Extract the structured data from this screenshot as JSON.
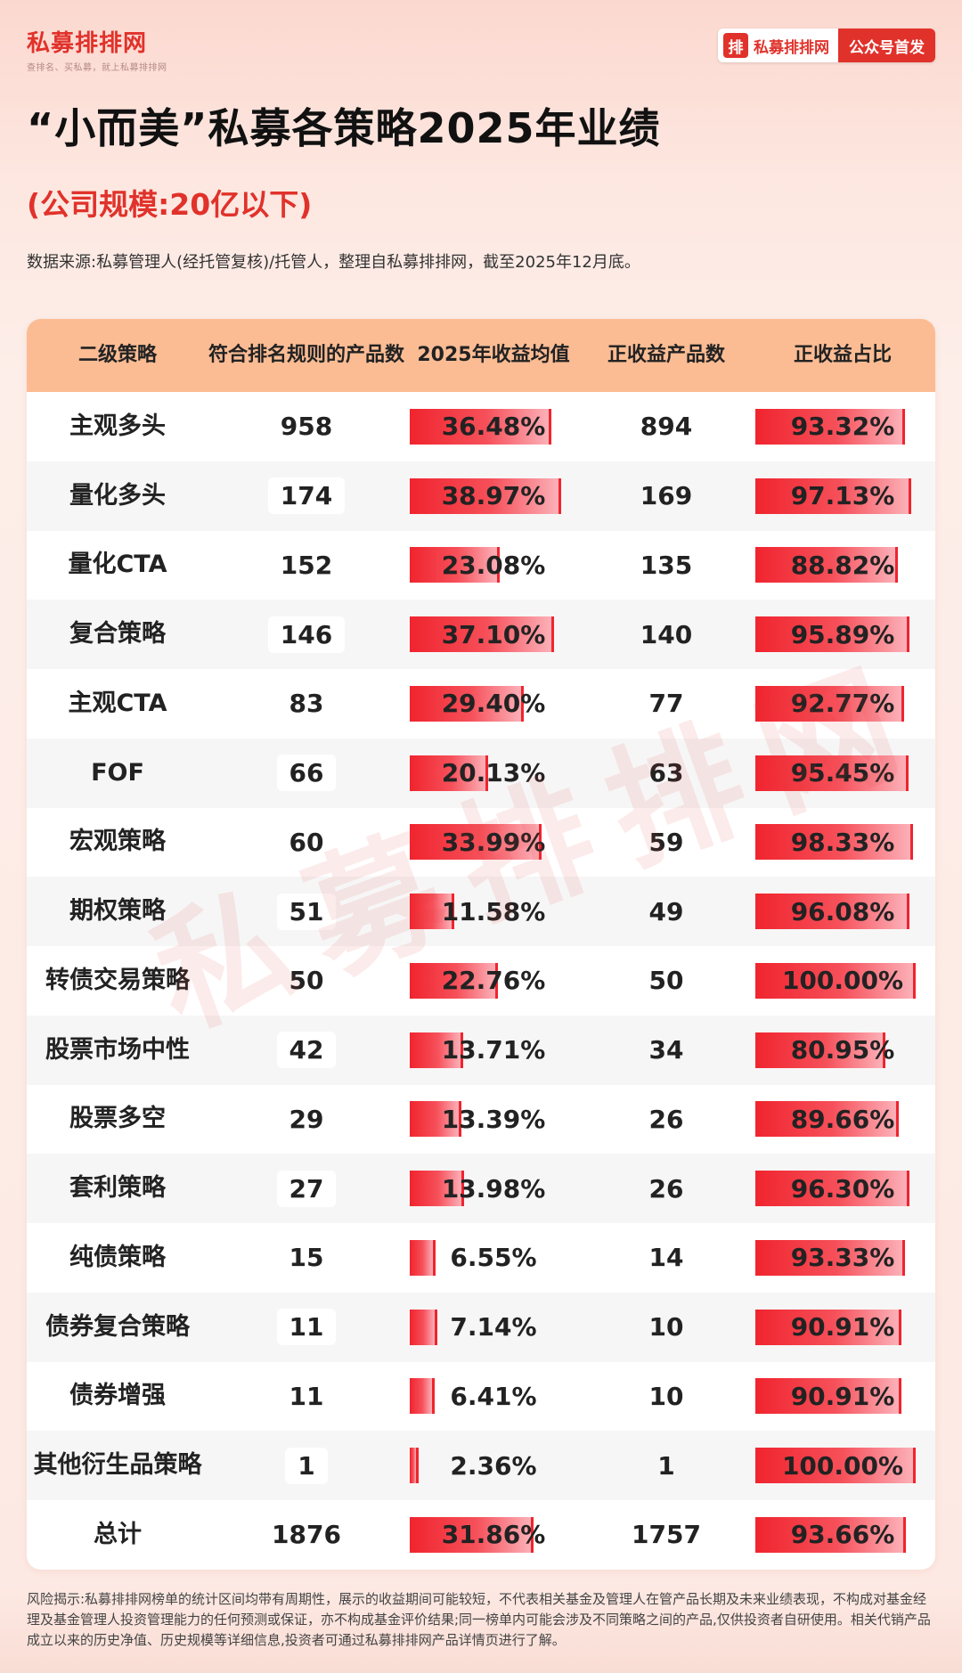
{
  "header": {
    "logo_name": "私募排排网",
    "logo_slogan": "查排名、买私募，就上私募排排网",
    "brand_mark": "排",
    "brand_name": "私募排排网",
    "tag": "公众号首发"
  },
  "title": "“小而美”私募各策略2025年业绩",
  "subtitle": "(公司规模:20亿以下)",
  "source": "数据来源:私募管理人(经托管复核)/托管人，整理自私募排排网，截至2025年12月底。",
  "table": {
    "headers": [
      "二级策略",
      "符合排名规则\n的产品数",
      "2025年收益均值",
      "正收益产品数",
      "正收益占比"
    ],
    "rows": [
      {
        "strategy": "主观多头",
        "count": "958",
        "avg_return": "36.48%",
        "avg_value": 36.48,
        "pos_count": "894",
        "pos_ratio": "93.32%",
        "ratio_value": 93.32
      },
      {
        "strategy": "量化多头",
        "count": "174",
        "avg_return": "38.97%",
        "avg_value": 38.97,
        "pos_count": "169",
        "pos_ratio": "97.13%",
        "ratio_value": 97.13
      },
      {
        "strategy": "量化CTA",
        "count": "152",
        "avg_return": "23.08%",
        "avg_value": 23.08,
        "pos_count": "135",
        "pos_ratio": "88.82%",
        "ratio_value": 88.82
      },
      {
        "strategy": "复合策略",
        "count": "146",
        "avg_return": "37.10%",
        "avg_value": 37.1,
        "pos_count": "140",
        "pos_ratio": "95.89%",
        "ratio_value": 95.89
      },
      {
        "strategy": "主观CTA",
        "count": "83",
        "avg_return": "29.40%",
        "avg_value": 29.4,
        "pos_count": "77",
        "pos_ratio": "92.77%",
        "ratio_value": 92.77
      },
      {
        "strategy": "FOF",
        "count": "66",
        "avg_return": "20.13%",
        "avg_value": 20.13,
        "pos_count": "63",
        "pos_ratio": "95.45%",
        "ratio_value": 95.45
      },
      {
        "strategy": "宏观策略",
        "count": "60",
        "avg_return": "33.99%",
        "avg_value": 33.99,
        "pos_count": "59",
        "pos_ratio": "98.33%",
        "ratio_value": 98.33
      },
      {
        "strategy": "期权策略",
        "count": "51",
        "avg_return": "11.58%",
        "avg_value": 11.58,
        "pos_count": "49",
        "pos_ratio": "96.08%",
        "ratio_value": 96.08
      },
      {
        "strategy": "转债交易策略",
        "count": "50",
        "avg_return": "22.76%",
        "avg_value": 22.76,
        "pos_count": "50",
        "pos_ratio": "100.00%",
        "ratio_value": 100.0
      },
      {
        "strategy": "股票市场中性",
        "count": "42",
        "avg_return": "13.71%",
        "avg_value": 13.71,
        "pos_count": "34",
        "pos_ratio": "80.95%",
        "ratio_value": 80.95
      },
      {
        "strategy": "股票多空",
        "count": "29",
        "avg_return": "13.39%",
        "avg_value": 13.39,
        "pos_count": "26",
        "pos_ratio": "89.66%",
        "ratio_value": 89.66
      },
      {
        "strategy": "套利策略",
        "count": "27",
        "avg_return": "13.98%",
        "avg_value": 13.98,
        "pos_count": "26",
        "pos_ratio": "96.30%",
        "ratio_value": 96.3
      },
      {
        "strategy": "纯债策略",
        "count": "15",
        "avg_return": "6.55%",
        "avg_value": 6.55,
        "pos_count": "14",
        "pos_ratio": "93.33%",
        "ratio_value": 93.33
      },
      {
        "strategy": "债券复合策略",
        "count": "11",
        "avg_return": "7.14%",
        "avg_value": 7.14,
        "pos_count": "10",
        "pos_ratio": "90.91%",
        "ratio_value": 90.91
      },
      {
        "strategy": "债券增强",
        "count": "11",
        "avg_return": "6.41%",
        "avg_value": 6.41,
        "pos_count": "10",
        "pos_ratio": "90.91%",
        "ratio_value": 90.91
      },
      {
        "strategy": "其他衍生品策略",
        "count": "1",
        "avg_return": "2.36%",
        "avg_value": 2.36,
        "pos_count": "1",
        "pos_ratio": "100.00%",
        "ratio_value": 100.0
      },
      {
        "strategy": "总计",
        "count": "1876",
        "avg_return": "31.86%",
        "avg_value": 31.86,
        "pos_count": "1757",
        "pos_ratio": "93.66%",
        "ratio_value": 93.66
      }
    ]
  },
  "watermark": "私募排排网",
  "disclaimer": "风险揭示:私募排排网榜单的统计区间均带有周期性，展示的收益期间可能较短，不代表相关基金及管理人在管产品长期及未来业绩表现，不构成对基金经理及基金管理人投资管理能力的任何预测或保证，亦不构成基金评价结果;同一榜单内可能会涉及不同策略之间的产品,仅供投资者自研使用。相关代销产品成立以来的历史净值、历史规模等详细信息,投资者可通过私募排排网产品详情页进行了解。",
  "colors": {
    "brand_red": "#e0322b",
    "header_orange": "#fbbc94",
    "bar_red": "#f0242e"
  }
}
